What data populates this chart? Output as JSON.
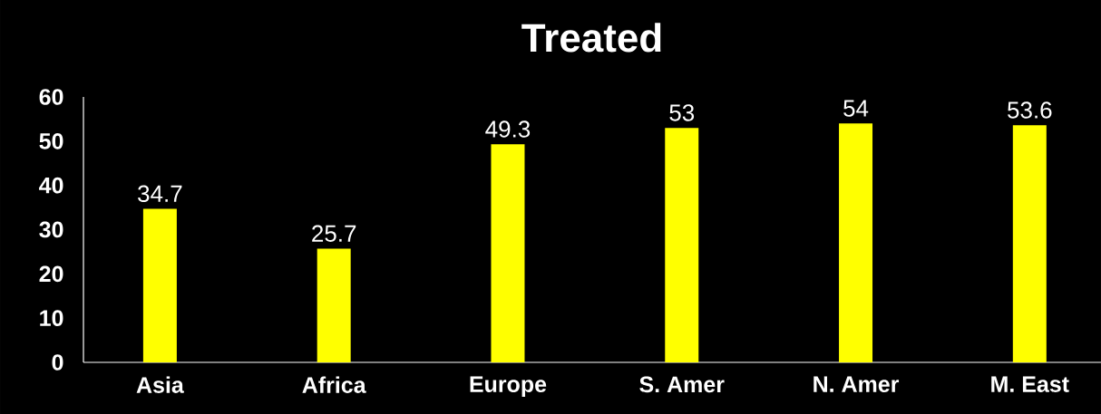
{
  "chart_data": {
    "type": "bar",
    "title": "Treated",
    "categories": [
      "Asia",
      "Africa",
      "Europe",
      "S. Amer",
      "N. Amer",
      "M. East"
    ],
    "values": [
      34.7,
      25.7,
      49.3,
      53,
      54,
      53.6
    ],
    "color": "#ffff00",
    "ylim": [
      0,
      60
    ],
    "yticks": [
      0,
      10,
      20,
      30,
      40,
      50,
      60
    ],
    "data_labels": true
  }
}
